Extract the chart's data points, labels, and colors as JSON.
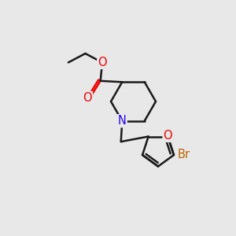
{
  "bg_color": "#e8e8e8",
  "bond_color": "#1a1a1a",
  "bond_width": 1.8,
  "N_color": "#2200ee",
  "O_color": "#ee0000",
  "Br_color": "#bb6600",
  "figsize": [
    3.0,
    3.0
  ],
  "dpi": 100,
  "font_size": 10.5,
  "xlim": [
    0,
    10
  ],
  "ylim": [
    0,
    10
  ]
}
